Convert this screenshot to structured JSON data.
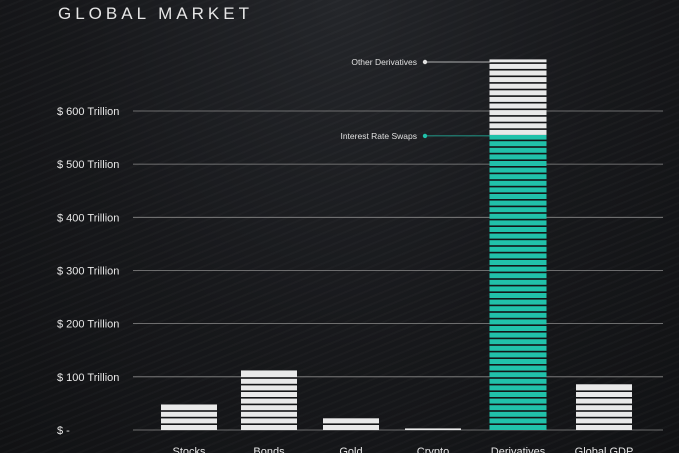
{
  "title": "GLOBAL MARKET",
  "colors": {
    "bar": "#e9e9e9",
    "highlight": "#21c1aa",
    "stripe_gap": "#141517",
    "grid": "#8a8a8a"
  },
  "chart_data": {
    "type": "bar",
    "title": "GLOBAL MARKET",
    "xlabel": "",
    "ylabel": "",
    "ylim": [
      0,
      700
    ],
    "yticks": [
      0,
      100,
      200,
      300,
      400,
      500,
      600
    ],
    "ytick_labels": [
      "$ -",
      "$ 100 Trillion",
      "$ 200 Trillion",
      "$ 300 Trillion",
      "$ 400 Trillion",
      "$ 500 Trillion",
      "$ 600 Trillion"
    ],
    "categories": [
      "Stocks",
      "Bonds",
      "Gold",
      "Crypto",
      "Derivatives",
      "Global GDP"
    ],
    "values": [
      48,
      112,
      22,
      3,
      697,
      86
    ],
    "grid": true,
    "derivatives_breakdown": [
      {
        "name": "Interest Rate Swaps",
        "value": 555
      },
      {
        "name": "Other Derivatives",
        "value": 142
      }
    ]
  }
}
